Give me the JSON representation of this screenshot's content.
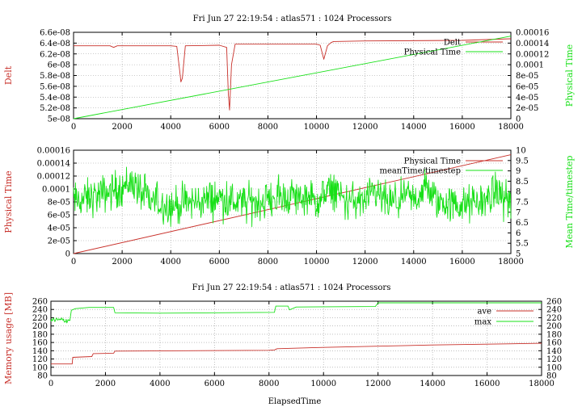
{
  "colors": {
    "red": "#c8302a",
    "green": "#18e018",
    "axis": "#000000",
    "grid": "#9a9a9a"
  },
  "chart_data": [
    {
      "id": "p1",
      "type": "line",
      "title": "Fri Jun 27 22:19:54 : atlas571 : 1024 Processors",
      "ylabel": "Delt",
      "y2label": "Physical Time",
      "xlim": [
        0,
        18000
      ],
      "ylim": [
        5e-08,
        6.6e-08
      ],
      "y2lim": [
        0,
        0.00016
      ],
      "x_ticks": [
        "0",
        "2000",
        "4000",
        "6000",
        "8000",
        "10000",
        "12000",
        "14000",
        "16000",
        "18000"
      ],
      "y_ticks": [
        "5e-08",
        "5.2e-08",
        "5.4e-08",
        "5.6e-08",
        "5.8e-08",
        "6e-08",
        "6.2e-08",
        "6.4e-08",
        "6.6e-08"
      ],
      "y2_ticks": [
        "0",
        "2e-05",
        "4e-05",
        "6e-05",
        "8e-05",
        "0.0001",
        "0.00012",
        "0.00014",
        "0.00016"
      ],
      "legend": "top-right",
      "grid": true,
      "series": [
        {
          "name": "Delt",
          "axis": "y",
          "x": [
            0,
            1500,
            1650,
            1800,
            4000,
            4250,
            4380,
            4420,
            4480,
            4600,
            6000,
            6300,
            6370,
            6420,
            6500,
            6650,
            10000,
            10150,
            10300,
            10450,
            10600,
            10700,
            12000,
            16000,
            18000
          ],
          "y": [
            6.35e-08,
            6.35e-08,
            6.32e-08,
            6.35e-08,
            6.35e-08,
            6.34e-08,
            5.85e-08,
            5.68e-08,
            5.75e-08,
            6.35e-08,
            6.36e-08,
            6.32e-08,
            5.45e-08,
            5.16e-08,
            6e-08,
            6.38e-08,
            6.38e-08,
            6.36e-08,
            6.1e-08,
            6.35e-08,
            6.41e-08,
            6.43e-08,
            6.44e-08,
            6.45e-08,
            6.48e-08
          ]
        },
        {
          "name": "Physical Time",
          "axis": "y2",
          "x": [
            0,
            18000
          ],
          "y": [
            0,
            0.000153
          ]
        }
      ]
    },
    {
      "id": "p2",
      "type": "line",
      "ylabel": "Physical Time",
      "y2label": "Mean Time/timestep",
      "xlim": [
        0,
        18000
      ],
      "ylim": [
        0,
        0.00016
      ],
      "y2lim": [
        5,
        10
      ],
      "x_ticks": [
        "0",
        "2000",
        "4000",
        "6000",
        "8000",
        "10000",
        "12000",
        "14000",
        "16000",
        "18000"
      ],
      "y_ticks": [
        "0",
        "2e-05",
        "4e-05",
        "6e-05",
        "8e-05",
        "0.0001",
        "0.00012",
        "0.00014",
        "0.00016"
      ],
      "y2_ticks": [
        "5",
        "5.5",
        "6",
        "6.5",
        "7",
        "7.5",
        "8",
        "8.5",
        "9",
        "9.5",
        "10"
      ],
      "legend": "top-right",
      "grid": true,
      "series": [
        {
          "name": "Physical Time",
          "axis": "y",
          "x": [
            0,
            18000
          ],
          "y": [
            0,
            0.000153
          ]
        },
        {
          "name": "meanTime/timestep",
          "axis": "y2",
          "x": [
            0,
            1000,
            2000,
            2400,
            3000,
            4000,
            5000,
            6000,
            7000,
            8000,
            9000,
            10000,
            10800,
            11000,
            12000,
            12400,
            13000,
            13500,
            14000,
            14500,
            15000,
            16000,
            17000,
            17400,
            18000
          ],
          "y": [
            7.5,
            7.8,
            8.2,
            8.5,
            7.6,
            7.3,
            7.5,
            7.7,
            7.4,
            7.6,
            7.8,
            7.5,
            8.2,
            7.6,
            7.5,
            7.9,
            7.4,
            7.6,
            7.6,
            8.2,
            7.5,
            7.3,
            7.6,
            8.0,
            7.5
          ],
          "noise_amplitude": 1.0
        }
      ]
    },
    {
      "id": "p3",
      "type": "line",
      "title": "Fri Jun 27 22:19:54 : atlas571 : 1024 Processors",
      "xlabel": "ElapsedTime",
      "ylabel": "Memory usage [MB]",
      "xlim": [
        0,
        18000
      ],
      "ylim": [
        80,
        260
      ],
      "y2lim": [
        80,
        260
      ],
      "x_ticks": [
        "0",
        "2000",
        "4000",
        "6000",
        "8000",
        "10000",
        "12000",
        "14000",
        "16000",
        "18000"
      ],
      "y_ticks": [
        "80",
        "100",
        "120",
        "140",
        "160",
        "180",
        "200",
        "220",
        "240",
        "260"
      ],
      "y2_ticks": [
        "80",
        "100",
        "120",
        "140",
        "160",
        "180",
        "200",
        "220",
        "240",
        "260"
      ],
      "legend": "top-right",
      "grid": true,
      "series": [
        {
          "name": "ave",
          "axis": "y",
          "x": [
            0,
            780,
            800,
            1500,
            1550,
            2300,
            2350,
            8000,
            8200,
            8300,
            10000,
            12000,
            14000,
            16000,
            18000
          ],
          "y": [
            108,
            108,
            124,
            126,
            133,
            134,
            139,
            141,
            142,
            145,
            148,
            151,
            154,
            156,
            158
          ],
          "noise_amplitude": 0
        },
        {
          "name": "max",
          "axis": "y",
          "x": [
            0,
            700,
            750,
            900,
            1400,
            2300,
            2350,
            4000,
            8200,
            8250,
            8700,
            8750,
            9000,
            11900,
            12000,
            18000
          ],
          "y": [
            212,
            216,
            238,
            242,
            245,
            245,
            232,
            231,
            233,
            248,
            248,
            239,
            246,
            247,
            256,
            256
          ],
          "noise_amplitude": 0
        }
      ]
    }
  ]
}
